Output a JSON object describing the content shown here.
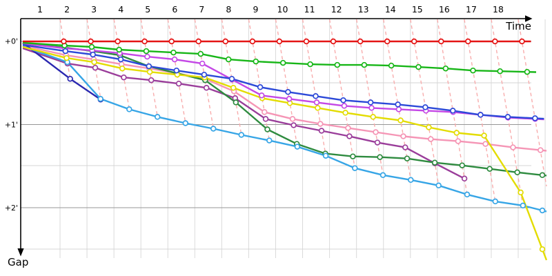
{
  "chart_data": {
    "type": "line",
    "title": "",
    "xlabel": "Time",
    "ylabel": "Gap",
    "x_tick_labels": [
      "1",
      "2",
      "3",
      "4",
      "5",
      "6",
      "7",
      "8",
      "9",
      "10",
      "11",
      "12",
      "13",
      "14",
      "15",
      "16",
      "17",
      "18"
    ],
    "y_tick_labels": [
      "+0'",
      "+1'",
      "+2'"
    ],
    "y_axis": {
      "unit": "gap behind leader (seconds)",
      "direction": "down",
      "labeled_values_sec": [
        0,
        60,
        120
      ]
    },
    "x_axis": {
      "checkpoints": 18,
      "grid": true
    },
    "legend": "none",
    "checkpoint_connectors": {
      "count": 18,
      "style": "dashed",
      "color": "#f8acac",
      "meaning": "links each checkpoint tick down across riders to the slowest rider"
    },
    "series": [
      {
        "name": "red-leader",
        "color": "#e41414",
        "gaps_sec": [
          0,
          0,
          0,
          0,
          0,
          0,
          0,
          0,
          0,
          0,
          0,
          0,
          0,
          0,
          0,
          0,
          0,
          0,
          0
        ]
      },
      {
        "name": "green",
        "color": "#17b617",
        "gaps_sec": [
          1,
          3,
          4,
          6,
          7,
          8,
          9,
          13,
          14.5,
          15.5,
          16.5,
          17,
          17,
          17.5,
          18.5,
          19.5,
          21,
          21.5,
          22
        ]
      },
      {
        "name": "violet",
        "color": "#c447e6",
        "gaps_sec": [
          1.5,
          5,
          6.5,
          8.5,
          11,
          13,
          16,
          27.5,
          39,
          41.5,
          44,
          46.5,
          48,
          49,
          50,
          51,
          53,
          55,
          56
        ]
      },
      {
        "name": "blue",
        "color": "#2c49d8",
        "gaps_sec": [
          2.5,
          7,
          9.5,
          13,
          18,
          21,
          24,
          27,
          33,
          36.5,
          39.5,
          42.5,
          44,
          45.5,
          47.5,
          50,
          53,
          54.5,
          55.5
        ]
      },
      {
        "name": "sea-green",
        "color": "#2e8b3f",
        "gaps_sec": [
          1.5,
          4.5,
          7,
          10,
          18,
          23,
          28,
          44,
          63.5,
          74,
          81,
          83,
          83.5,
          84.5,
          87.5,
          89.5,
          92,
          94.5,
          96.5
        ]
      },
      {
        "name": "pink",
        "color": "#f595b5",
        "gaps_sec": [
          3,
          10,
          13,
          16.5,
          19.5,
          23,
          27,
          36,
          51,
          56,
          59.5,
          62.5,
          65.5,
          68.5,
          70.5,
          72,
          74,
          76.5,
          78.5
        ]
      },
      {
        "name": "yellow",
        "color": "#e3dc00",
        "gaps_sec": [
          4,
          12,
          15,
          19.5,
          22,
          24,
          26,
          33.5,
          41,
          44.5,
          48,
          51.5,
          54.5,
          57,
          62,
          66,
          68,
          109,
          150
        ]
      },
      {
        "name": "purple",
        "color": "#9a3d9a",
        "gaps_sec": [
          5,
          16,
          19,
          26,
          28,
          30.5,
          33.5,
          41,
          56,
          60.5,
          64.5,
          68.5,
          73,
          76.5,
          88,
          99
        ]
      },
      {
        "name": "navy",
        "color": "#2b28b0",
        "gaps_sec": [
          1,
          27,
          42
        ]
      },
      {
        "name": "sky-blue",
        "color": "#36a5e6",
        "gaps_sec": [
          3.5,
          15,
          41.5,
          49,
          54.5,
          59,
          63,
          67.5,
          71.5,
          76,
          82.5,
          91.5,
          96.5,
          100,
          104,
          110.5,
          115.5,
          118.5,
          122
        ]
      }
    ]
  }
}
